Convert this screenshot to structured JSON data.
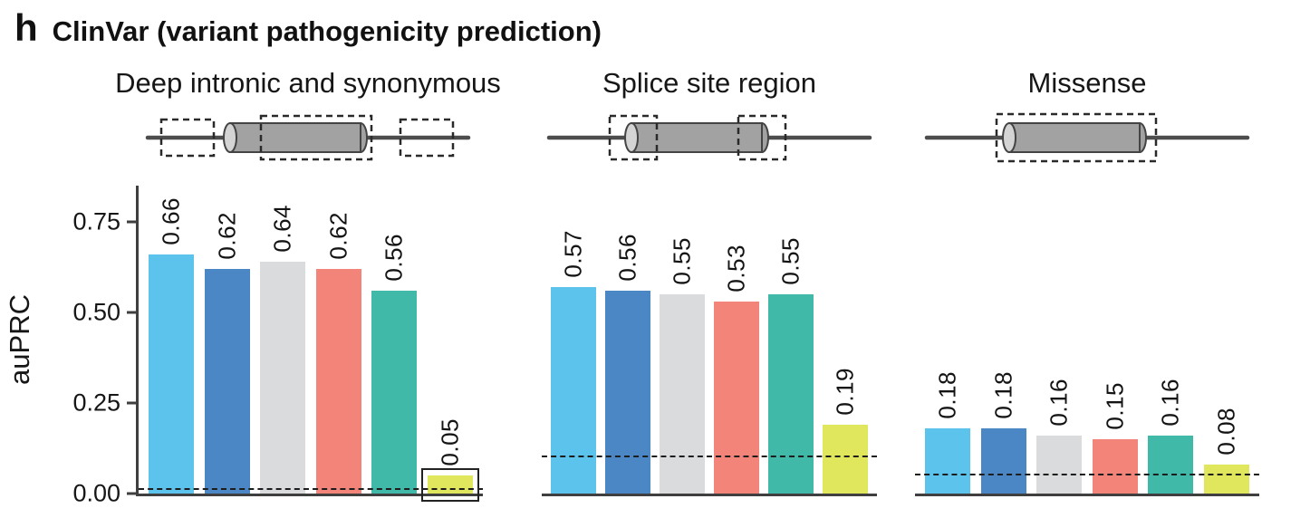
{
  "figure": {
    "panel_label": "h",
    "title": "ClinVar (variant pathogenicity prediction)"
  },
  "ylabel": "auPRC",
  "y_ticks": [
    "0.00",
    "0.25",
    "0.50",
    "0.75"
  ],
  "bar_colors": [
    "#5BC3EC",
    "#4B86C5",
    "#D9DBDC",
    "#F2847A",
    "#41B9A8",
    "#E1E75C"
  ],
  "chart_data": [
    {
      "type": "bar",
      "title": "Deep intronic and synonymous",
      "diagram": "gene-model-with-dashed-boxes-over-introns-and-exon-body",
      "values": [
        0.66,
        0.62,
        0.64,
        0.62,
        0.56,
        0.05
      ],
      "value_labels": [
        "0.66",
        "0.62",
        "0.64",
        "0.62",
        "0.56",
        "0.05"
      ],
      "dashed_baseline": 0.01,
      "highlight_last_bar": true,
      "ylabel": "auPRC",
      "ylim": [
        0,
        0.8
      ],
      "grid": false,
      "legend": false
    },
    {
      "type": "bar",
      "title": "Splice site region",
      "diagram": "gene-model-with-dashed-boxes-over-exon-edges",
      "values": [
        0.57,
        0.56,
        0.55,
        0.53,
        0.55,
        0.19
      ],
      "value_labels": [
        "0.57",
        "0.56",
        "0.55",
        "0.53",
        "0.55",
        "0.19"
      ],
      "dashed_baseline": 0.1,
      "highlight_last_bar": false,
      "ylabel": "auPRC",
      "ylim": [
        0,
        0.8
      ],
      "grid": false,
      "legend": false
    },
    {
      "type": "bar",
      "title": "Missense",
      "diagram": "gene-model-with-dashed-box-over-whole-exon",
      "values": [
        0.18,
        0.18,
        0.16,
        0.15,
        0.16,
        0.08
      ],
      "value_labels": [
        "0.18",
        "0.18",
        "0.16",
        "0.15",
        "0.16",
        "0.08"
      ],
      "dashed_baseline": 0.05,
      "highlight_last_bar": false,
      "ylabel": "auPRC",
      "ylim": [
        0,
        0.8
      ],
      "grid": false,
      "legend": false
    }
  ]
}
